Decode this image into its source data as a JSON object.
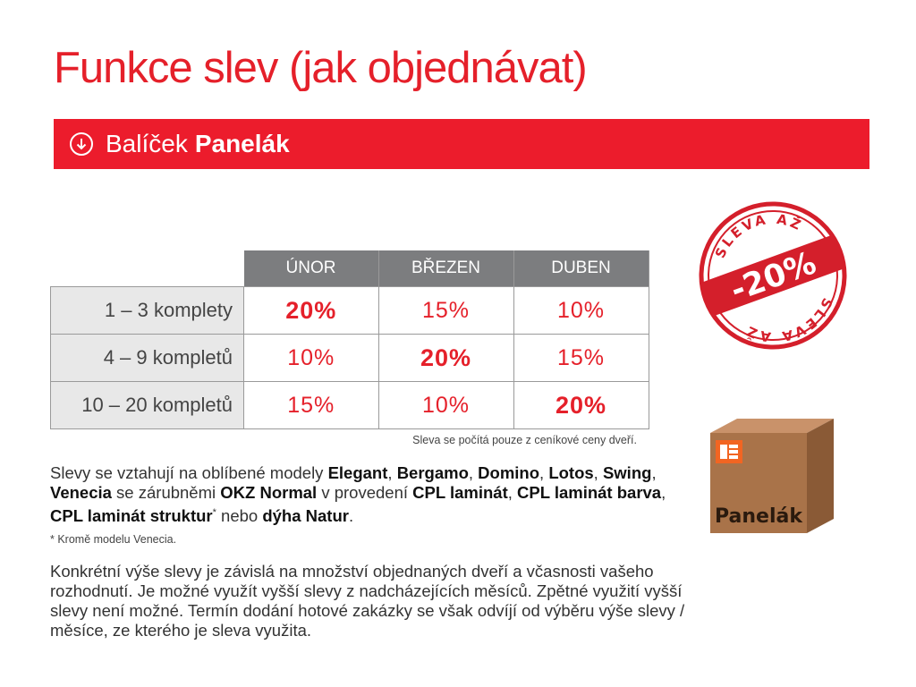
{
  "page": {
    "title": "Funkce slev (jak objednávat)"
  },
  "banner": {
    "icon": "circle-arrow-down-icon",
    "label_prefix": "Balíček",
    "label_bold": "Panelák"
  },
  "table": {
    "headers": [
      "ÚNOR",
      "BŘEZEN",
      "DUBEN"
    ],
    "rows": [
      {
        "label": "1 – 3 komplety",
        "values": [
          "20%",
          "15%",
          "10%"
        ],
        "highlight": 0
      },
      {
        "label": "4 – 9 kompletů",
        "values": [
          "10%",
          "20%",
          "15%"
        ],
        "highlight": 1
      },
      {
        "label": "10 – 20 kompletů",
        "values": [
          "15%",
          "10%",
          "20%"
        ],
        "highlight": 2
      }
    ],
    "note": "Sleva se počítá pouze z ceníkové ceny dveří."
  },
  "text": {
    "p1": {
      "a": "Slevy se vztahují na oblíbené modely ",
      "m1": "Elegant",
      "s1": ", ",
      "m2": "Bergamo",
      "s2": ", ",
      "m3": "Domino",
      "s3": ", ",
      "m4": "Lotos",
      "s4": ", ",
      "m5": "Swing",
      "s5": ",",
      "m6": "Venecia",
      "b": " se zárubněmi ",
      "okz": "OKZ Normal",
      "c": " v provedení ",
      "cpl1": "CPL laminát",
      "s6": ", ",
      "cpl2": "CPL laminát barva",
      "s7": ", ",
      "cpl3": "CPL laminát struktur",
      "star": "*",
      "d": " nebo ",
      "dyha": "dýha Natur",
      "e": "."
    },
    "footnote": "* Kromě modelu Venecia.",
    "p2": "Konkrétní výše slevy je závislá na množství objednaných dveří a včasnosti vašeho rozhodnutí. Je možné využít vyšší slevy z nadcházejících měsíců. Zpětné využití vyšší slevy není možné. Termín dodání hotové zakázky se však odvíjí od výběru výše slevy / měsíce, ze kterého je sleva využita."
  },
  "stamp": {
    "top": "SLEVA AŽ",
    "value": "-20%",
    "bottom": "SLEVA AŽ",
    "color": "#d41f2b"
  },
  "box": {
    "label": "Panelák",
    "color": "#a47048"
  }
}
